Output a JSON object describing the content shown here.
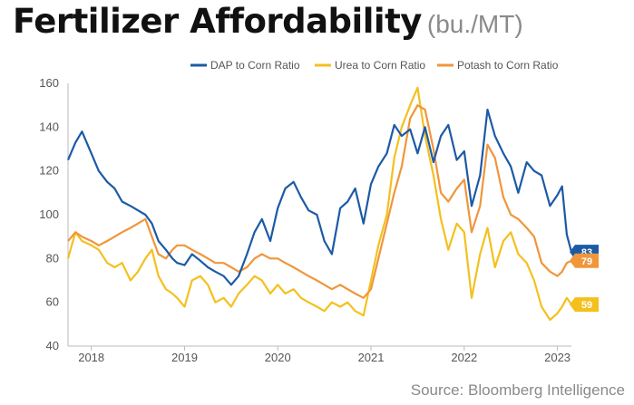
{
  "title": "Fertilizer Affordability",
  "unit": "(bu./MT)",
  "source": "Source: Bloomberg Intelligence",
  "chart_data": {
    "type": "line",
    "ylim": [
      40,
      160
    ],
    "yticks": [
      40,
      60,
      80,
      100,
      120,
      140,
      160
    ],
    "xlim": [
      2017.75,
      2023.15
    ],
    "xticks": [
      {
        "label": "2018",
        "value": 2018.0
      },
      {
        "label": "2019",
        "value": 2019.0
      },
      {
        "label": "2020",
        "value": 2020.0
      },
      {
        "label": "2021",
        "value": 2021.0
      },
      {
        "label": "2022",
        "value": 2022.0
      },
      {
        "label": "2023",
        "value": 2023.0
      }
    ],
    "grid": false,
    "legend_position": "top-right",
    "series": [
      {
        "name": "DAP to Corn Ratio",
        "color": "#1c5aa6",
        "end_label": "83",
        "x": [
          2017.75,
          2017.83,
          2017.9,
          2018.0,
          2018.08,
          2018.17,
          2018.25,
          2018.33,
          2018.42,
          2018.5,
          2018.58,
          2018.65,
          2018.72,
          2018.8,
          2018.87,
          2018.92,
          2019.0,
          2019.08,
          2019.17,
          2019.25,
          2019.33,
          2019.42,
          2019.5,
          2019.58,
          2019.67,
          2019.75,
          2019.83,
          2019.92,
          2020.0,
          2020.08,
          2020.17,
          2020.25,
          2020.33,
          2020.42,
          2020.5,
          2020.58,
          2020.67,
          2020.75,
          2020.83,
          2020.92,
          2021.0,
          2021.08,
          2021.17,
          2021.25,
          2021.33,
          2021.42,
          2021.5,
          2021.58,
          2021.67,
          2021.75,
          2021.83,
          2021.92,
          2022.0,
          2022.08,
          2022.17,
          2022.25,
          2022.33,
          2022.42,
          2022.5,
          2022.58,
          2022.67,
          2022.75,
          2022.83,
          2022.92,
          2023.0,
          2023.05,
          2023.1,
          2023.15
        ],
        "values": [
          125,
          133,
          138,
          128,
          120,
          115,
          112,
          106,
          104,
          102,
          100,
          96,
          88,
          84,
          80,
          78,
          77,
          82,
          79,
          76,
          74,
          72,
          68,
          72,
          82,
          92,
          98,
          88,
          103,
          112,
          115,
          108,
          102,
          100,
          88,
          82,
          103,
          106,
          112,
          96,
          114,
          122,
          128,
          141,
          136,
          139,
          128,
          140,
          124,
          136,
          141,
          125,
          129,
          104,
          118,
          148,
          136,
          128,
          122,
          110,
          124,
          120,
          118,
          104,
          109,
          113,
          91,
          83
        ]
      },
      {
        "name": "Urea to Corn Ratio",
        "color": "#f4c01e",
        "end_label": "59",
        "x": [
          2017.75,
          2017.83,
          2017.9,
          2018.0,
          2018.08,
          2018.17,
          2018.25,
          2018.33,
          2018.42,
          2018.5,
          2018.58,
          2018.65,
          2018.72,
          2018.8,
          2018.87,
          2018.92,
          2019.0,
          2019.08,
          2019.17,
          2019.25,
          2019.33,
          2019.42,
          2019.5,
          2019.58,
          2019.67,
          2019.75,
          2019.83,
          2019.92,
          2020.0,
          2020.08,
          2020.17,
          2020.25,
          2020.33,
          2020.42,
          2020.5,
          2020.58,
          2020.67,
          2020.75,
          2020.83,
          2020.92,
          2021.0,
          2021.08,
          2021.17,
          2021.25,
          2021.33,
          2021.42,
          2021.5,
          2021.58,
          2021.67,
          2021.75,
          2021.83,
          2021.92,
          2022.0,
          2022.08,
          2022.17,
          2022.25,
          2022.33,
          2022.42,
          2022.5,
          2022.58,
          2022.67,
          2022.75,
          2022.83,
          2022.92,
          2023.0,
          2023.05,
          2023.1,
          2023.15
        ],
        "values": [
          80,
          92,
          88,
          86,
          84,
          78,
          76,
          78,
          70,
          74,
          80,
          84,
          72,
          66,
          64,
          62,
          58,
          70,
          72,
          68,
          60,
          62,
          58,
          64,
          68,
          72,
          70,
          64,
          68,
          64,
          66,
          62,
          60,
          58,
          56,
          60,
          58,
          60,
          56,
          54,
          70,
          86,
          100,
          126,
          140,
          150,
          158,
          136,
          118,
          98,
          84,
          96,
          92,
          62,
          82,
          94,
          76,
          88,
          92,
          82,
          78,
          70,
          58,
          52,
          55,
          58,
          62,
          59
        ]
      },
      {
        "name": "Potash to Corn Ratio",
        "color": "#f0963b",
        "end_label": "79",
        "x": [
          2017.75,
          2017.83,
          2017.9,
          2018.0,
          2018.08,
          2018.17,
          2018.25,
          2018.33,
          2018.42,
          2018.5,
          2018.58,
          2018.65,
          2018.72,
          2018.8,
          2018.87,
          2018.92,
          2019.0,
          2019.08,
          2019.17,
          2019.25,
          2019.33,
          2019.42,
          2019.5,
          2019.58,
          2019.67,
          2019.75,
          2019.83,
          2019.92,
          2020.0,
          2020.08,
          2020.17,
          2020.25,
          2020.33,
          2020.42,
          2020.5,
          2020.58,
          2020.67,
          2020.75,
          2020.83,
          2020.92,
          2021.0,
          2021.08,
          2021.17,
          2021.25,
          2021.33,
          2021.42,
          2021.5,
          2021.58,
          2021.67,
          2021.75,
          2021.83,
          2021.92,
          2022.0,
          2022.08,
          2022.17,
          2022.25,
          2022.33,
          2022.42,
          2022.5,
          2022.58,
          2022.67,
          2022.75,
          2022.83,
          2022.92,
          2023.0,
          2023.05,
          2023.1,
          2023.15
        ],
        "values": [
          88,
          92,
          90,
          88,
          86,
          88,
          90,
          92,
          94,
          96,
          98,
          90,
          82,
          80,
          84,
          86,
          86,
          84,
          82,
          80,
          78,
          78,
          76,
          74,
          76,
          80,
          82,
          80,
          80,
          78,
          76,
          74,
          72,
          70,
          68,
          66,
          68,
          66,
          64,
          62,
          66,
          80,
          96,
          110,
          122,
          144,
          150,
          148,
          130,
          110,
          106,
          112,
          116,
          92,
          104,
          132,
          126,
          108,
          100,
          98,
          94,
          90,
          78,
          74,
          72,
          74,
          78,
          79
        ]
      }
    ]
  }
}
